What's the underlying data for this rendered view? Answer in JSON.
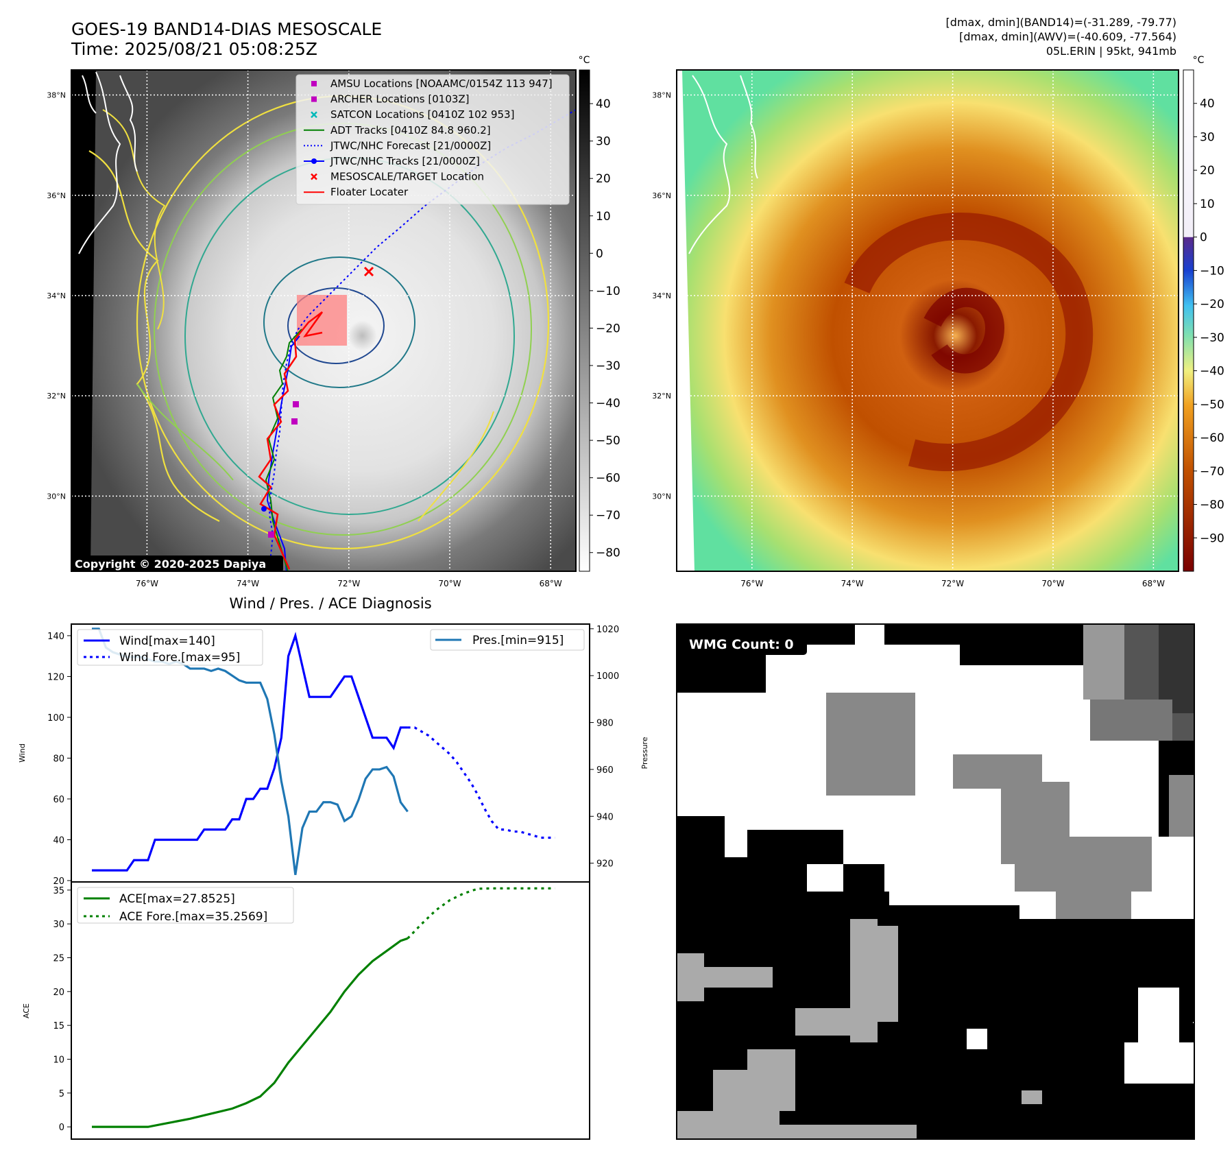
{
  "header": {
    "title_line1": "GOES-19 BAND14-DIAS MESOSCALE",
    "title_line2": "Time: 2025/08/21 05:08:25Z",
    "stats_line1": "[dmax, dmin](BAND14)=(-31.289, -79.77)",
    "stats_line2": "[dmax, dmin](AWV)=(-40.609, -77.564)",
    "stats_line3": "05L.ERIN | 95kt, 941mb"
  },
  "copyright": "Copyright © 2020-2025 Dapiya",
  "maps": {
    "lat_labels": [
      "38°N",
      "36°N",
      "34°N",
      "32°N",
      "30°N"
    ],
    "lon_labels": [
      "76°W",
      "74°W",
      "72°W",
      "70°W",
      "68°W"
    ],
    "lat_values": [
      38,
      36,
      34,
      32,
      30
    ],
    "lon_values": [
      -76,
      -74,
      -72,
      -70,
      -68
    ],
    "extent": {
      "lon": [
        -77.5,
        -67.5
      ],
      "lat": [
        28.5,
        38.5
      ]
    }
  },
  "ir_colorbar": {
    "unit": "°C",
    "ticks": [
      "40",
      "30",
      "20",
      "10",
      "0",
      "−10",
      "−20",
      "−30",
      "−40",
      "−50",
      "−60",
      "−70",
      "−80"
    ],
    "tick_values": [
      40,
      30,
      20,
      10,
      0,
      -10,
      -20,
      -30,
      -40,
      -50,
      -60,
      -70,
      -80
    ],
    "range": [
      -85,
      49
    ]
  },
  "awv_colorbar": {
    "unit": "°C",
    "ticks": [
      "40",
      "30",
      "20",
      "10",
      "0",
      "−10",
      "−20",
      "−30",
      "−40",
      "−50",
      "−60",
      "−70",
      "−80",
      "−90"
    ],
    "tick_values": [
      40,
      30,
      20,
      10,
      0,
      -10,
      -20,
      -30,
      -40,
      -50,
      -60,
      -70,
      -80,
      -90
    ],
    "range": [
      -100,
      50
    ]
  },
  "legend": [
    {
      "label": "AMSU Locations [NOAAMC/0154Z 113 947]",
      "color": "#c000c0",
      "marker": "square"
    },
    {
      "label": "ARCHER Locations [0103Z]",
      "color": "#c000c0",
      "marker": "square"
    },
    {
      "label": "SATCON Locations [0410Z 102 953]",
      "color": "#00b8b8",
      "marker": "x"
    },
    {
      "label": "ADT Tracks [0410Z 84.8 960.2]",
      "color": "#008000",
      "marker": "line"
    },
    {
      "label": "JTWC/NHC Forecast [21/0000Z]",
      "color": "#0000ff",
      "marker": "dotted"
    },
    {
      "label": "JTWC/NHC Tracks [21/0000Z]",
      "color": "#0000ff",
      "marker": "line-dot"
    },
    {
      "label": "MESOSCALE/TARGET Location",
      "color": "#ff0000",
      "marker": "x"
    },
    {
      "label": "Floater Locater",
      "color": "#ff0000",
      "marker": "line"
    }
  ],
  "wind_pres": {
    "title": "Wind / Pres. / ACE Diagnosis",
    "ylabel_left": "Wind",
    "ylabel_right": "Pressure",
    "legend_wind": "Wind[max=140]",
    "legend_wind_fore": "Wind Fore.[max=95]",
    "legend_pres": "Pres.[min=915]",
    "wind_ticks": [
      "20",
      "40",
      "60",
      "80",
      "100",
      "120",
      "140"
    ],
    "pres_ticks": [
      "920",
      "940",
      "960",
      "980",
      "1000",
      "1020"
    ]
  },
  "ace": {
    "ylabel": "ACE",
    "legend_ace": "ACE[max=27.8525]",
    "legend_ace_fore": "ACE Fore.[max=35.2569]",
    "ticks": [
      "0",
      "5",
      "10",
      "15",
      "20",
      "25",
      "30",
      "35"
    ]
  },
  "wmg": {
    "label": "WMG Count: 0"
  },
  "chart_data": [
    {
      "type": "line",
      "name": "wind",
      "x": [
        0,
        1,
        2,
        3,
        4,
        5,
        6,
        7,
        8,
        9,
        10,
        11,
        12,
        13,
        14,
        15,
        16,
        17,
        18,
        19,
        20,
        21,
        22,
        23,
        24,
        25,
        26,
        27,
        28,
        29,
        30,
        31,
        32,
        33,
        34,
        35,
        36,
        37,
        38,
        39,
        40,
        41,
        42,
        43,
        44,
        45
      ],
      "series": [
        {
          "name": "Wind[max=140]",
          "values": [
            25,
            25,
            25,
            25,
            25,
            25,
            30,
            30,
            30,
            40,
            40,
            40,
            40,
            40,
            40,
            40,
            45,
            45,
            45,
            45,
            50,
            50,
            60,
            60,
            65,
            65,
            75,
            90,
            130,
            140,
            125,
            110,
            110,
            110,
            110,
            115,
            120,
            120,
            110,
            100,
            90,
            90,
            90,
            85,
            95,
            95
          ]
        },
        {
          "name": "Wind Fore.[max=95]",
          "x": [
            45,
            46,
            47,
            48,
            49,
            50,
            51,
            52,
            53,
            54,
            55,
            56,
            57,
            58,
            59,
            60,
            61,
            62,
            63,
            64,
            65,
            66
          ],
          "values": [
            95,
            95,
            93,
            91,
            88,
            85,
            82,
            78,
            73,
            68,
            62,
            55,
            49,
            45,
            45,
            44,
            44,
            43,
            42,
            41,
            41,
            41
          ]
        }
      ],
      "ylim": [
        20,
        140
      ]
    },
    {
      "type": "line",
      "name": "pressure",
      "series": [
        {
          "name": "Pres.[min=915]",
          "x": [
            0,
            1,
            2,
            3,
            4,
            5,
            6,
            7,
            8,
            9,
            10,
            11,
            12,
            13,
            14,
            15,
            16,
            17,
            18,
            19,
            20,
            21,
            22,
            23,
            24,
            25,
            26,
            27,
            28,
            29,
            30,
            31,
            32,
            33,
            34,
            35,
            36,
            37,
            38,
            39,
            40,
            41,
            42,
            43,
            44,
            45
          ],
          "values": [
            1020,
            1020,
            1012,
            1010,
            1009,
            1008,
            1008,
            1008,
            1007,
            1006,
            1006,
            1005,
            1006,
            1005,
            1003,
            1003,
            1003,
            1002,
            1003,
            1002,
            1000,
            998,
            997,
            997,
            997,
            990,
            975,
            955,
            940,
            915,
            935,
            942,
            942,
            946,
            946,
            945,
            938,
            940,
            947,
            956,
            960,
            960,
            961,
            957,
            946,
            942
          ]
        }
      ],
      "ylim": [
        912,
        1020
      ]
    },
    {
      "type": "line",
      "name": "ace",
      "series": [
        {
          "name": "ACE[max=27.8525]",
          "x": [
            0,
            2,
            4,
            6,
            8,
            10,
            12,
            14,
            16,
            18,
            20,
            22,
            24,
            26,
            28,
            30,
            32,
            34,
            36,
            38,
            40,
            42,
            44,
            45
          ],
          "values": [
            0,
            0,
            0,
            0,
            0,
            0.4,
            0.8,
            1.2,
            1.7,
            2.2,
            2.7,
            3.5,
            4.5,
            6.5,
            9.5,
            12,
            14.5,
            17,
            20,
            22.5,
            24.5,
            26,
            27.5,
            27.85
          ]
        },
        {
          "name": "ACE Fore.[max=35.2569]",
          "x": [
            45,
            47,
            49,
            51,
            53,
            55,
            57,
            59,
            61,
            63,
            65,
            66
          ],
          "values": [
            27.85,
            30,
            32,
            33.5,
            34.5,
            35.2,
            35.25,
            35.25,
            35.25,
            35.25,
            35.25,
            35.25
          ]
        }
      ],
      "ylim": [
        -1,
        36
      ]
    }
  ]
}
